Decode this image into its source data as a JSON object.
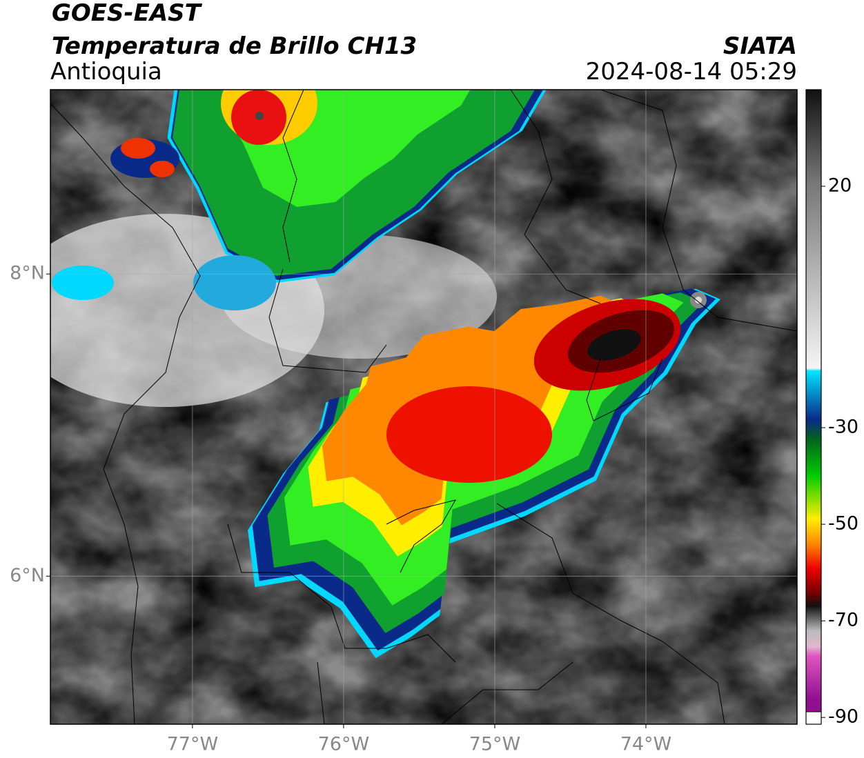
{
  "header": {
    "satellite": "GOES-EAST",
    "product": "Temperatura de Brillo CH13",
    "region": "Antioquia",
    "source": "SIATA",
    "datetime": "2024-08-14 05:29"
  },
  "map": {
    "xlim": [
      -77.94,
      -73.0
    ],
    "ylim": [
      5.02,
      9.22
    ],
    "xticks": [
      {
        "value": -77,
        "label": "77°W"
      },
      {
        "value": -76,
        "label": "76°W"
      },
      {
        "value": -75,
        "label": "75°W"
      },
      {
        "value": -74,
        "label": "74°W"
      }
    ],
    "yticks": [
      {
        "value": 8,
        "label": "8°N"
      },
      {
        "value": 6,
        "label": "6°N"
      }
    ],
    "grid": true
  },
  "colorbar": {
    "clim": [
      -91.4,
      40
    ],
    "ticks": [
      20,
      -30,
      -50,
      -70,
      -90
    ]
  }
}
